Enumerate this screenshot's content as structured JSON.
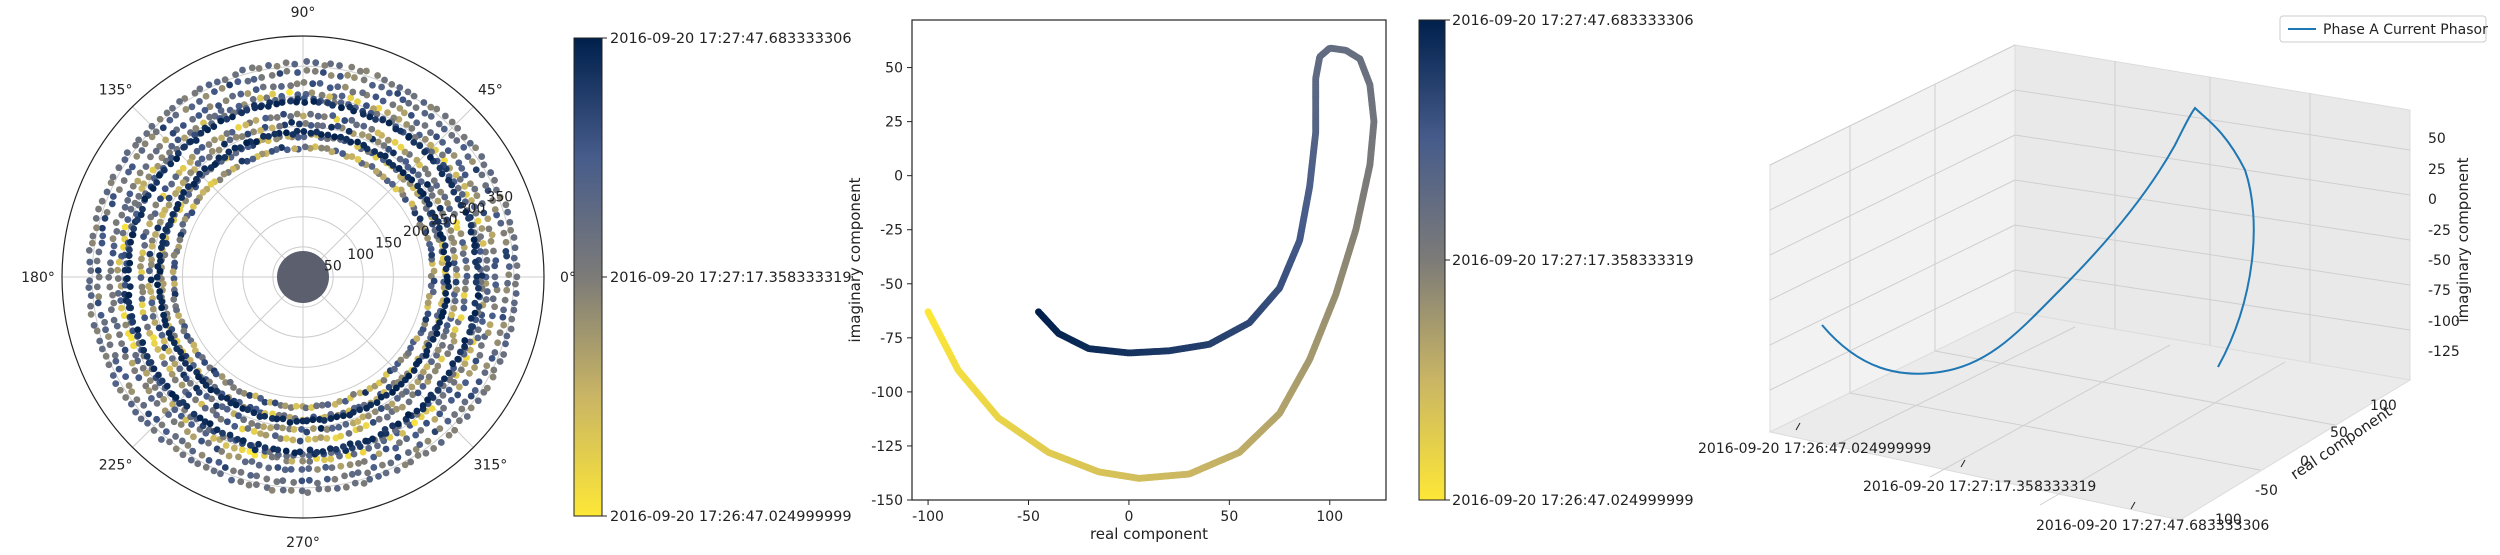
{
  "chart_data": [
    {
      "type": "scatter",
      "projection": "polar",
      "angle_ticks": [
        "0°",
        "45°",
        "90°",
        "135°",
        "180°",
        "225°",
        "270°",
        "315°"
      ],
      "radial_ticks": [
        "50",
        "100",
        "150",
        "200",
        "250",
        "300",
        "350"
      ],
      "rlim": [
        0,
        400
      ],
      "grid": true,
      "colormap": "cividis",
      "colorbar": {
        "ticks": [
          "2016-09-20 17:27:47.683333306",
          "2016-09-20 17:27:17.358333319",
          "2016-09-20 17:26:47.024999999"
        ]
      },
      "series": [
        {
          "rings": [
            {
              "r": 305,
              "t0": 0.0,
              "t1": 0.8
            },
            {
              "r": 270,
              "t0": 0.05,
              "t1": 0.85
            },
            {
              "r": 235,
              "t0": 0.1,
              "t1": 0.9
            },
            {
              "r": 215,
              "t0": 0.12,
              "t1": 0.95
            },
            {
              "r": 255,
              "t0": 0.2,
              "t1": 1.0
            },
            {
              "r": 320,
              "t0": 0.3,
              "t1": 0.85
            },
            {
              "r": 340,
              "t0": 0.4,
              "t1": 0.9
            },
            {
              "r": 355,
              "t0": 0.45,
              "t1": 0.7
            },
            {
              "r": 295,
              "t0": 0.5,
              "t1": 0.95
            },
            {
              "r": 290,
              "t0": 0.88,
              "t1": 1.0
            },
            {
              "r": 240,
              "t0": 0.92,
              "t1": 1.0
            }
          ]
        }
      ]
    },
    {
      "type": "scatter",
      "xlabel": "real component",
      "ylabel": "imaginary component",
      "xlim": [
        -108,
        128
      ],
      "ylim": [
        -150,
        72
      ],
      "xticks": [
        -100,
        -50,
        0,
        50,
        100
      ],
      "yticks": [
        50,
        25,
        0,
        -25,
        -50,
        -75,
        -100,
        -125,
        -150
      ],
      "colormap": "cividis",
      "colorbar": {
        "ticks": [
          "2016-09-20 17:27:47.683333306",
          "2016-09-20 17:27:17.358333319",
          "2016-09-20 17:26:47.024999999"
        ]
      },
      "series": [
        {
          "x": [
            -100,
            -85,
            -65,
            -40,
            -15,
            5,
            30,
            55,
            75,
            90,
            103,
            113,
            120,
            122,
            120,
            115,
            108,
            100,
            95,
            93,
            93,
            90,
            85,
            75,
            60,
            40,
            20,
            0,
            -20,
            -35,
            -45
          ],
          "y": [
            -63,
            -90,
            -112,
            -128,
            -137,
            -140,
            -138,
            -128,
            -110,
            -85,
            -55,
            -25,
            5,
            25,
            42,
            54,
            58,
            59,
            55,
            45,
            20,
            -5,
            -30,
            -52,
            -68,
            -78,
            -81,
            -82,
            -80,
            -73,
            -63
          ]
        }
      ]
    },
    {
      "type": "line",
      "projection": "3d",
      "legend": "Phase A Current Phasor",
      "legend_position": "top-right",
      "xticks": [
        "2016-09-20 17:26:47.024999999",
        "2016-09-20 17:27:17.358333319",
        "2016-09-20 17:27:47.683333306"
      ],
      "yticks": [
        "-100",
        "-50",
        "0",
        "50",
        "100"
      ],
      "ylabel": "real component",
      "zticks": [
        "50",
        "25",
        "0",
        "-25",
        "-50",
        "-75",
        "-100",
        "-125"
      ],
      "zlabel": "imaginary component",
      "colors": {
        "line": "#1f77b4"
      }
    }
  ]
}
